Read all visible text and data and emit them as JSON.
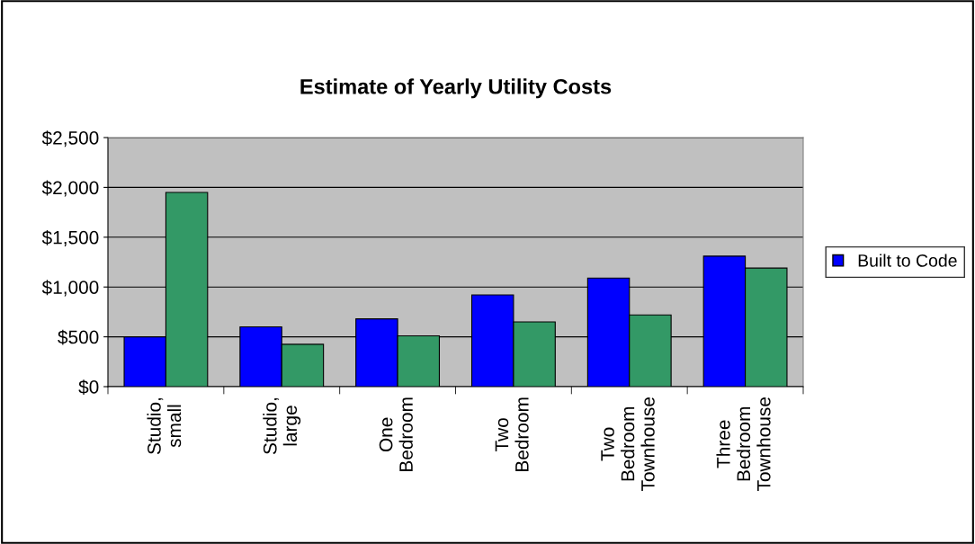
{
  "chart_data": {
    "type": "bar",
    "title": "Estimate of Yearly Utility Costs",
    "categories": [
      "Studio,\nsmall",
      "Studio,\nlarge",
      "One\nBedroom",
      "Two\nBedroom",
      "Two\nBedroom\nTownhouse",
      "Three\nBedroom\nTownhouse"
    ],
    "series": [
      {
        "name": "Built to Code",
        "color": "#0000ff",
        "values": [
          500,
          600,
          680,
          920,
          1090,
          1310
        ]
      },
      {
        "color": "#339966",
        "values": [
          1950,
          425,
          510,
          650,
          720,
          1190
        ]
      }
    ],
    "ylim": [
      0,
      2500
    ],
    "yticks": [
      {
        "value": 0,
        "label": "$0"
      },
      {
        "value": 500,
        "label": "$500"
      },
      {
        "value": 1000,
        "label": "$1,000"
      },
      {
        "value": 1500,
        "label": "$1,500"
      },
      {
        "value": 2000,
        "label": "$2,000"
      },
      {
        "value": 2500,
        "label": "$2,500"
      }
    ],
    "grid": "y",
    "legend": "right"
  }
}
